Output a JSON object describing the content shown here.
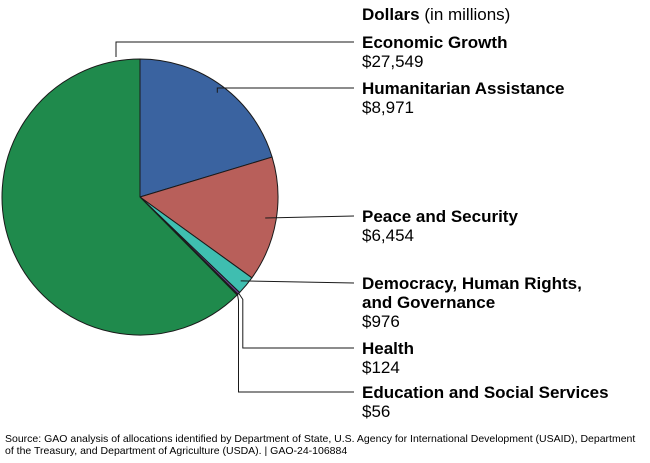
{
  "chart_data": {
    "type": "pie",
    "legend_heading": "Dollars",
    "legend_heading_unit": "(in millions)",
    "slices": [
      {
        "label": "Humanitarian Assistance",
        "value": 8971,
        "value_label": "$8,971",
        "color": "#3a63a0"
      },
      {
        "label": "Peace and Security",
        "value": 6454,
        "value_label": "$6,454",
        "color": "#b85f5a"
      },
      {
        "label": "Democracy, Human Rights, and Governance",
        "label_lines": [
          "Democracy, Human Rights,",
          "and Governance"
        ],
        "value": 976,
        "value_label": "$976",
        "color": "#3fbeb0"
      },
      {
        "label": "Health",
        "value": 124,
        "value_label": "$124",
        "color": "#6a3d8c"
      },
      {
        "label": "Education and Social Services",
        "value": 56,
        "value_label": "$56",
        "color": "#d35a55"
      },
      {
        "label": "Economic Growth",
        "value": 27549,
        "value_label": "$27,549",
        "color": "#1f8a4c"
      }
    ],
    "legend_order": [
      "Economic Growth",
      "Humanitarian Assistance",
      "Peace and Security",
      "Democracy, Human Rights, and Governance",
      "Health",
      "Education and Social Services"
    ]
  },
  "source": "Source: GAO analysis of allocations identified by Department of State, U.S. Agency for International Development (USAID), Department of the Treasury, and Department of Agriculture (USDA).  |  GAO-24-106884"
}
